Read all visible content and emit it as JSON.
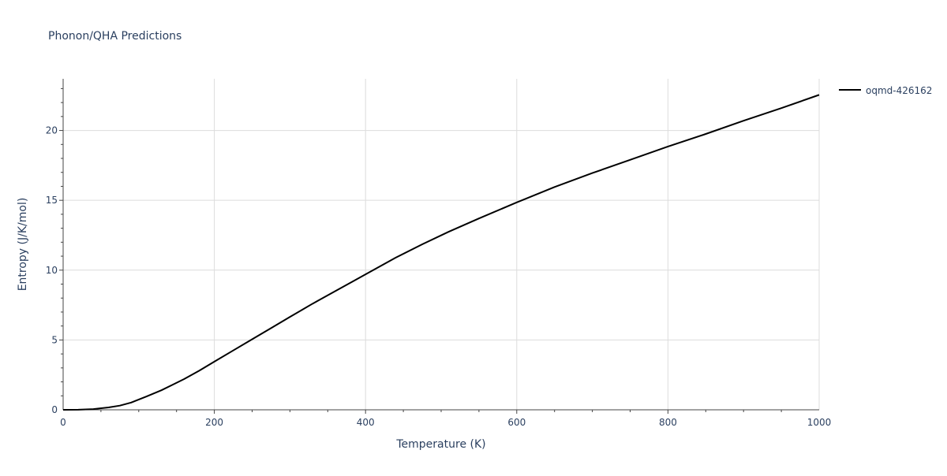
{
  "chart_data": {
    "type": "line",
    "title": "Phonon/QHA Predictions",
    "xlabel": "Temperature (K)",
    "ylabel": "Entropy (J/K/mol)",
    "xlim": [
      0,
      1000
    ],
    "ylim": [
      0,
      23.7
    ],
    "x_ticks": [
      0,
      200,
      400,
      600,
      800,
      1000
    ],
    "y_ticks": [
      0,
      5,
      10,
      15,
      20
    ],
    "x_tick_labels": [
      "0",
      "200",
      "400",
      "600",
      "800",
      "1000"
    ],
    "y_tick_labels": [
      "0",
      "5",
      "10",
      "15",
      "20"
    ],
    "grid": true,
    "legend_position": "top-right",
    "series": [
      {
        "name": "oqmd-426162",
        "color": "#000000",
        "x": [
          0,
          20,
          40,
          60,
          75,
          90,
          110,
          130,
          145,
          160,
          180,
          200,
          225,
          250,
          275,
          300,
          330,
          360,
          385,
          400,
          440,
          475,
          510,
          550,
          600,
          650,
          700,
          750,
          800,
          850,
          900,
          950,
          1000
        ],
        "y": [
          0.0,
          0.01,
          0.05,
          0.17,
          0.3,
          0.52,
          0.95,
          1.4,
          1.8,
          2.2,
          2.8,
          3.45,
          4.25,
          5.05,
          5.85,
          6.65,
          7.6,
          8.5,
          9.25,
          9.7,
          10.9,
          11.85,
          12.75,
          13.7,
          14.85,
          15.95,
          16.95,
          17.9,
          18.85,
          19.75,
          20.7,
          21.6,
          22.55
        ]
      }
    ]
  }
}
